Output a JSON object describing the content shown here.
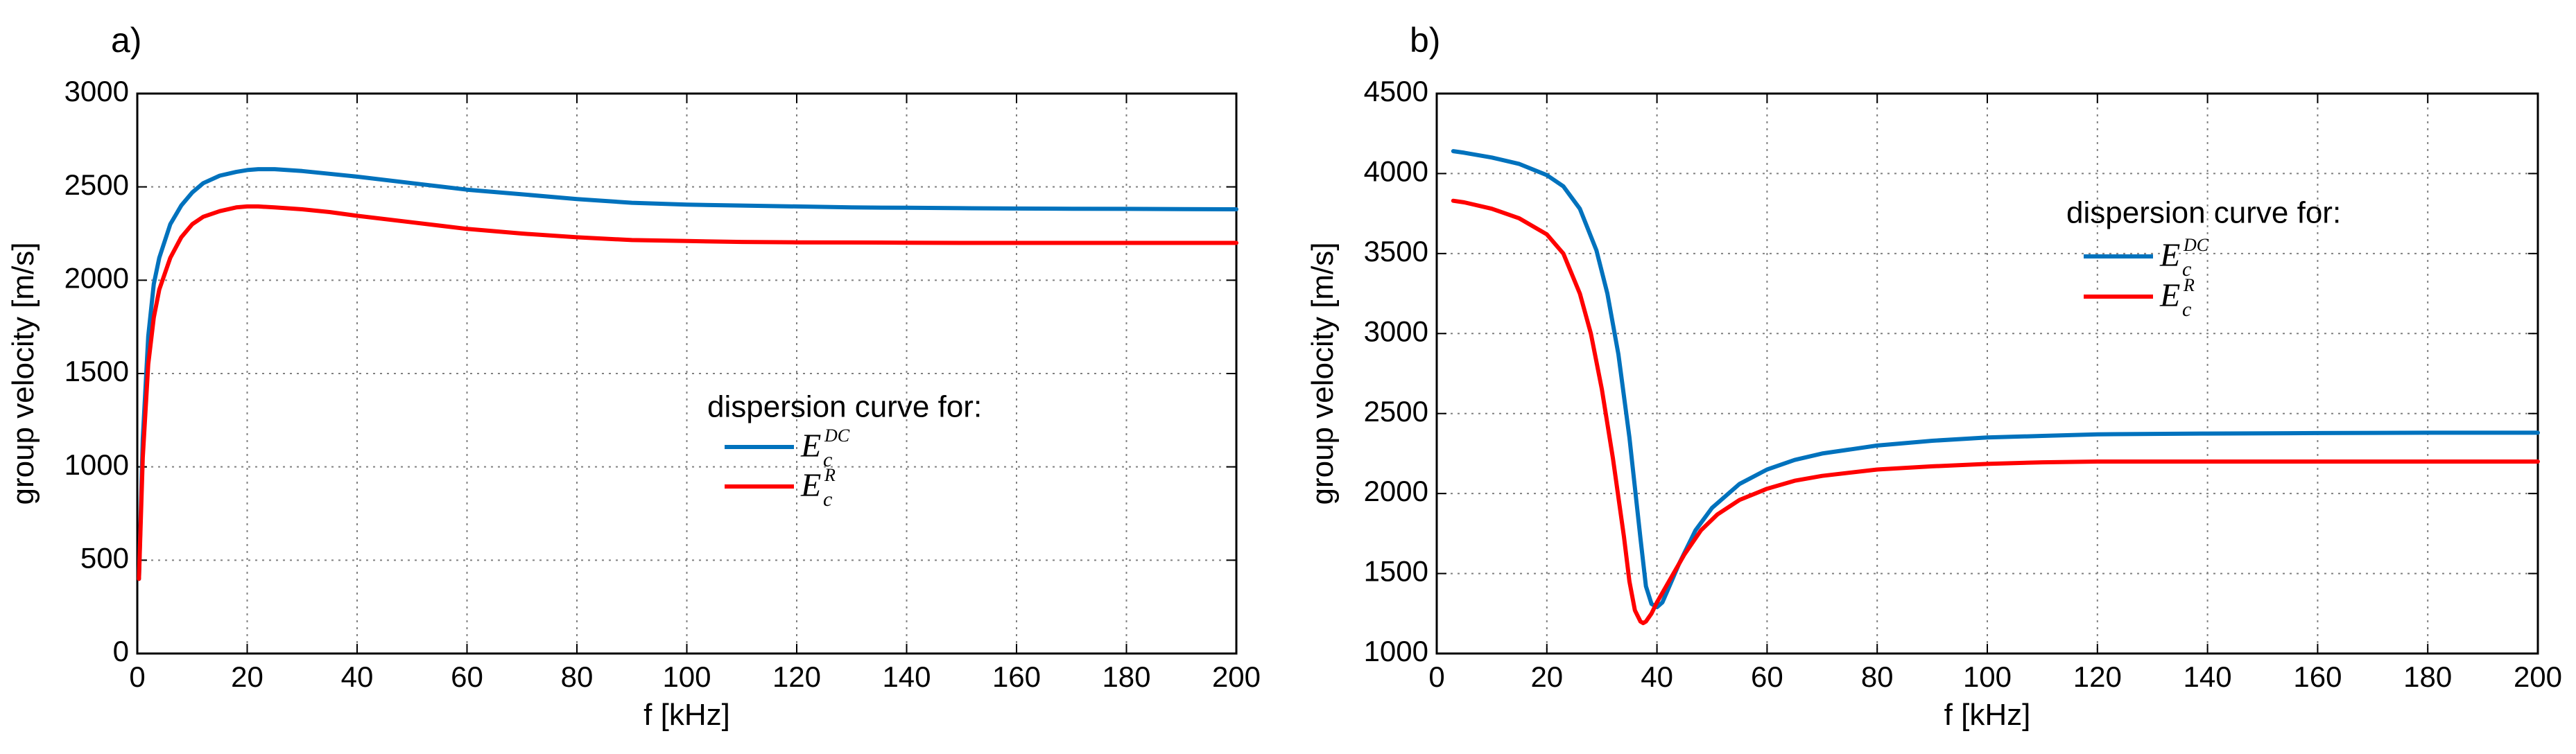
{
  "colors": {
    "series_dc": "#0072BD",
    "series_r": "#FF0000",
    "grid": "#808080",
    "axis": "#000000"
  },
  "chart_data": [
    {
      "panel_label": "a)",
      "type": "line",
      "xlabel": "f [kHz]",
      "ylabel": "group velocity [m/s]",
      "xlim": [
        0,
        200
      ],
      "ylim": [
        0,
        3000
      ],
      "xticks": [
        0,
        20,
        40,
        60,
        80,
        100,
        120,
        140,
        160,
        180,
        200
      ],
      "yticks": [
        0,
        500,
        1000,
        1500,
        2000,
        2500,
        3000
      ],
      "grid": true,
      "legend": {
        "title": "dispersion curve for:",
        "placement": "center-right",
        "entries": [
          {
            "base": "E",
            "sub": "c",
            "sup": "DC"
          },
          {
            "base": "E",
            "sub": "c",
            "sup": "R"
          }
        ]
      },
      "series": [
        {
          "name": "E_c^DC",
          "color": "#0072BD",
          "x": [
            0.3,
            1,
            2,
            3,
            4,
            6,
            8,
            10,
            12,
            15,
            18,
            20,
            22,
            25,
            30,
            35,
            40,
            50,
            60,
            70,
            80,
            90,
            100,
            110,
            120,
            130,
            140,
            150,
            160,
            170,
            180,
            190,
            200
          ],
          "y": [
            400,
            1150,
            1700,
            1980,
            2120,
            2300,
            2400,
            2470,
            2520,
            2560,
            2580,
            2590,
            2595,
            2595,
            2585,
            2570,
            2555,
            2520,
            2485,
            2460,
            2435,
            2415,
            2405,
            2400,
            2395,
            2390,
            2388,
            2386,
            2384,
            2383,
            2382,
            2381,
            2380
          ]
        },
        {
          "name": "E_c^R",
          "color": "#FF0000",
          "x": [
            0.3,
            1,
            2,
            3,
            4,
            6,
            8,
            10,
            12,
            15,
            18,
            20,
            22,
            25,
            30,
            35,
            40,
            50,
            60,
            70,
            80,
            90,
            100,
            110,
            120,
            130,
            140,
            150,
            160,
            170,
            180,
            190,
            200
          ],
          "y": [
            400,
            1050,
            1550,
            1800,
            1950,
            2120,
            2230,
            2300,
            2340,
            2370,
            2390,
            2395,
            2395,
            2390,
            2380,
            2365,
            2345,
            2310,
            2275,
            2250,
            2230,
            2215,
            2210,
            2205,
            2203,
            2202,
            2201,
            2200,
            2200,
            2200,
            2200,
            2200,
            2200
          ]
        }
      ]
    },
    {
      "panel_label": "b)",
      "type": "line",
      "xlabel": "f [kHz]",
      "ylabel": "group velocity [m/s]",
      "xlim": [
        0,
        200
      ],
      "ylim": [
        1000,
        4500
      ],
      "xticks": [
        0,
        20,
        40,
        60,
        80,
        100,
        120,
        140,
        160,
        180,
        200
      ],
      "yticks": [
        1000,
        1500,
        2000,
        2500,
        3000,
        3500,
        4000,
        4500
      ],
      "grid": true,
      "legend": {
        "title": "dispersion curve for:",
        "placement": "top-right",
        "entries": [
          {
            "base": "E",
            "sub": "c",
            "sup": "DC"
          },
          {
            "base": "E",
            "sub": "c",
            "sup": "R"
          }
        ]
      },
      "series": [
        {
          "name": "E_c^DC",
          "color": "#0072BD",
          "x": [
            3,
            5,
            10,
            15,
            20,
            23,
            26,
            29,
            31,
            33,
            35,
            37,
            38,
            39,
            40,
            41,
            42,
            44,
            47,
            50,
            55,
            60,
            65,
            70,
            80,
            90,
            100,
            110,
            120,
            140,
            160,
            180,
            200
          ],
          "y": [
            4140,
            4130,
            4100,
            4060,
            3990,
            3920,
            3780,
            3520,
            3250,
            2870,
            2350,
            1720,
            1420,
            1310,
            1290,
            1320,
            1400,
            1560,
            1770,
            1910,
            2060,
            2150,
            2210,
            2250,
            2300,
            2330,
            2350,
            2360,
            2370,
            2375,
            2378,
            2380,
            2380
          ]
        },
        {
          "name": "E_c^R",
          "color": "#FF0000",
          "x": [
            3,
            5,
            10,
            15,
            20,
            23,
            26,
            28,
            30,
            32,
            34,
            35,
            36,
            37,
            37.5,
            38,
            39,
            40,
            42,
            45,
            48,
            51,
            55,
            60,
            65,
            70,
            80,
            90,
            100,
            110,
            120,
            140,
            160,
            180,
            200
          ],
          "y": [
            3830,
            3820,
            3780,
            3720,
            3620,
            3500,
            3250,
            3000,
            2650,
            2220,
            1730,
            1450,
            1270,
            1200,
            1190,
            1200,
            1250,
            1320,
            1440,
            1620,
            1770,
            1870,
            1960,
            2030,
            2080,
            2110,
            2150,
            2170,
            2185,
            2195,
            2200,
            2200,
            2200,
            2200,
            2200
          ]
        }
      ]
    }
  ]
}
